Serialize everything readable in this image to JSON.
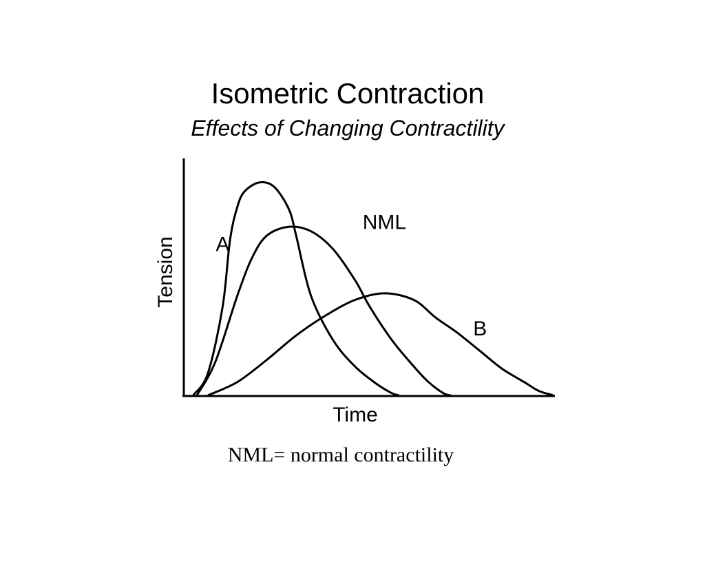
{
  "slide": {
    "title": "Isometric Contraction",
    "subtitle": "Effects of Changing Contractility",
    "caption": "NML= normal contractility"
  },
  "chart_data": {
    "type": "line",
    "xlabel": "Time",
    "ylabel": "Tension",
    "xlim": [
      0,
      100
    ],
    "ylim": [
      0,
      100
    ],
    "grid": false,
    "legend": "none",
    "line_color": "#000000",
    "series": [
      {
        "name": "A",
        "label_at": [
          10,
          65
        ],
        "points": [
          [
            2,
            0
          ],
          [
            6,
            10
          ],
          [
            10,
            40
          ],
          [
            12,
            70
          ],
          [
            14,
            85
          ],
          [
            16,
            92
          ],
          [
            20,
            96
          ],
          [
            24,
            94
          ],
          [
            28,
            84
          ],
          [
            30,
            72
          ],
          [
            34,
            45
          ],
          [
            40,
            25
          ],
          [
            46,
            13
          ],
          [
            52,
            5
          ],
          [
            56,
            1
          ],
          [
            58,
            0
          ]
        ]
      },
      {
        "name": "NML",
        "label_at": [
          54,
          75
        ],
        "points": [
          [
            3,
            0
          ],
          [
            8,
            15
          ],
          [
            14,
            45
          ],
          [
            18,
            62
          ],
          [
            22,
            72
          ],
          [
            28,
            76
          ],
          [
            34,
            74
          ],
          [
            40,
            66
          ],
          [
            46,
            52
          ],
          [
            50,
            40
          ],
          [
            56,
            25
          ],
          [
            62,
            13
          ],
          [
            66,
            6
          ],
          [
            70,
            1
          ],
          [
            72,
            0
          ]
        ]
      },
      {
        "name": "B",
        "label_at": [
          80,
          27
        ],
        "points": [
          [
            6,
            0
          ],
          [
            14,
            6
          ],
          [
            22,
            16
          ],
          [
            30,
            27
          ],
          [
            38,
            36
          ],
          [
            46,
            43
          ],
          [
            54,
            46
          ],
          [
            62,
            43
          ],
          [
            68,
            35
          ],
          [
            74,
            28
          ],
          [
            80,
            20
          ],
          [
            86,
            12
          ],
          [
            92,
            6
          ],
          [
            96,
            2
          ],
          [
            100,
            0
          ]
        ]
      }
    ]
  }
}
